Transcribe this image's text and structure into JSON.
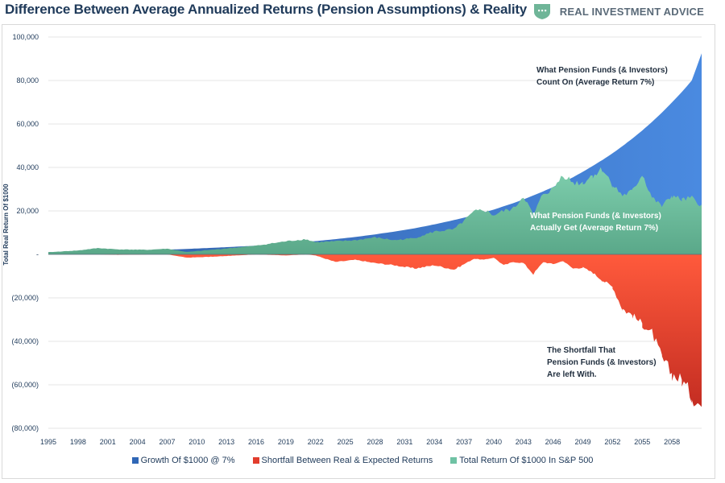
{
  "header": {
    "title": "Difference Between Average Annualized Returns (Pension Assumptions) & Reality",
    "brand_name": "REAL INVESTMENT ADVICE"
  },
  "colors": {
    "growth": "#3f7fd6",
    "growth_dark": "#2f5ea8",
    "shortfall": "#e23d2d",
    "shortfall_light": "#ff5a3c",
    "sp500": "#6fc2a4",
    "sp500_dark": "#4e9e84",
    "brand": "#6fb598"
  },
  "annotations": {
    "growth_line1": "What Pension Funds (& Investors)",
    "growth_line2": "Count On (Average Return 7%)",
    "sp500_line1": "What Pension Funds (& Investors)",
    "sp500_line2": "Actually Get (Average Return 7%)",
    "shortfall_line1": "The Shortfall That",
    "shortfall_line2": "Pension Funds (& Investors)",
    "shortfall_line3": "Are left With."
  },
  "chart_data": {
    "type": "area",
    "ylabel": "Total Real Return Of $1000",
    "ylim": [
      -80000,
      100000
    ],
    "yticks": [
      100000,
      80000,
      60000,
      40000,
      20000,
      0,
      -20000,
      -40000,
      -60000,
      -80000
    ],
    "ytick_labels": [
      "100,000",
      "80,000",
      "60,000",
      "40,000",
      "20,000",
      "-",
      "(20,000)",
      "(40,000)",
      "(60,000)",
      "(80,000)"
    ],
    "xlim": [
      1995,
      2061
    ],
    "x_ticks": [
      "1995",
      "1998",
      "2001",
      "2004",
      "2007",
      "2010",
      "2013",
      "2016",
      "2019",
      "2022",
      "2025",
      "2028",
      "2031",
      "2034",
      "2037",
      "2040",
      "2043",
      "2046",
      "2049",
      "2052",
      "2055",
      "2058"
    ],
    "grid": true,
    "legend_position": "bottom",
    "x": [
      1995,
      1998,
      2000,
      2002,
      2005,
      2007,
      2009,
      2012,
      2016,
      2019,
      2021,
      2022,
      2024,
      2026,
      2028,
      2030,
      2032,
      2034,
      2036,
      2038,
      2039,
      2040,
      2041,
      2042,
      2043,
      2044,
      2045,
      2046,
      2047,
      2048,
      2049,
      2050,
      2051,
      2052,
      2053,
      2054,
      2055,
      2056,
      2057,
      2058,
      2059,
      2060,
      2061
    ],
    "series": [
      {
        "name": "Growth Of $1000 @ 7%",
        "values": [
          1000,
          1230,
          1400,
          1600,
          2000,
          2200,
          2500,
          3100,
          4000,
          5000,
          5700,
          6100,
          7000,
          8000,
          9200,
          10500,
          12000,
          13800,
          15800,
          18000,
          19300,
          20600,
          22100,
          23600,
          25300,
          27100,
          29000,
          31000,
          33200,
          35500,
          38000,
          40700,
          43500,
          46500,
          49800,
          53300,
          57000,
          61000,
          65300,
          69900,
          74700,
          80000,
          92500
        ]
      },
      {
        "name": "Shortfall Between Real & Expected Returns",
        "values": [
          0,
          0,
          0,
          -200,
          0,
          0,
          -1500,
          -1000,
          0,
          -500,
          0,
          -500,
          -3500,
          -2500,
          -4000,
          -5000,
          -6500,
          -5000,
          -7000,
          -2000,
          -2500,
          -1500,
          -5000,
          -3500,
          -4000,
          -9000,
          -3500,
          -4500,
          -3000,
          -6500,
          -6000,
          -8500,
          -12000,
          -15000,
          -25000,
          -28000,
          -32000,
          -36000,
          -48000,
          -55000,
          -58000,
          -65000,
          -70000
        ]
      },
      {
        "name": "Total Return Of $1000 In S&P 500",
        "values": [
          1000,
          1800,
          2900,
          2300,
          2100,
          2600,
          1100,
          2300,
          4000,
          6000,
          7000,
          5600,
          6000,
          6500,
          7800,
          6500,
          7500,
          10500,
          11500,
          19500,
          20500,
          18000,
          20000,
          21000,
          27000,
          18000,
          28000,
          30000,
          37000,
          33000,
          33000,
          36500,
          39000,
          32000,
          27000,
          29000,
          37000,
          26000,
          22000,
          27000,
          25000,
          26000,
          22500
        ]
      }
    ]
  },
  "legend": {
    "growth": "Growth Of $1000 @ 7%",
    "shortfall": "Shortfall Between Real & Expected Returns",
    "sp500": "Total Return Of $1000 In S&P 500"
  }
}
